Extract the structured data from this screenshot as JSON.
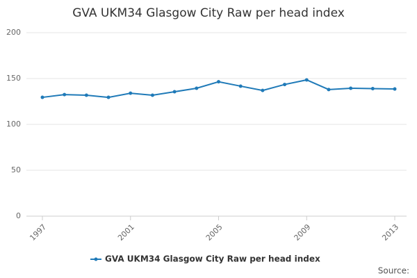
{
  "chart_data": {
    "type": "line",
    "title": "GVA UKM34 Glasgow City Raw per head index",
    "x": [
      1997,
      1998,
      1999,
      2000,
      2001,
      2002,
      2003,
      2004,
      2005,
      2006,
      2007,
      2008,
      2009,
      2010,
      2011,
      2012,
      2013
    ],
    "series": [
      {
        "name": "GVA UKM34 Glasgow City Raw per head index",
        "color": "#1f7ab8",
        "values": [
          129.5,
          132.5,
          131.8,
          129.5,
          134,
          131.8,
          135.6,
          139.4,
          146.5,
          141.7,
          137,
          143.5,
          148.5,
          138,
          139.4,
          139,
          138.6
        ]
      }
    ],
    "xlim": [
      1997,
      2013
    ],
    "xticks": [
      1997,
      2001,
      2005,
      2009,
      2013
    ],
    "ylim": [
      0,
      200
    ],
    "yticks": [
      0,
      50,
      100,
      150,
      200
    ],
    "grid": true,
    "legend": "bottom",
    "source": "Source:"
  }
}
